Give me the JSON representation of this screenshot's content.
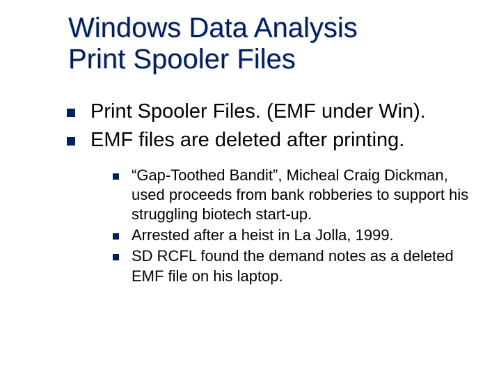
{
  "colors": {
    "background": "#ffffff",
    "title_text": "#001f5f",
    "body_text": "#000000",
    "bullet_marker": "#001f5f"
  },
  "typography": {
    "title_font": "Verdana",
    "title_size_pt": 30,
    "title_weight": 400,
    "body_font": "Verdana",
    "body_l1_size_pt": 22,
    "body_l2_size_pt": 17
  },
  "layout": {
    "slide_width": 720,
    "slide_height": 540,
    "title_left_pad": 98,
    "body_left_pad": 96,
    "sub_indent": 66,
    "bullet_l1_size": 12,
    "bullet_l2_size": 9
  },
  "title": {
    "line1": "Windows Data Analysis",
    "line2": "Print Spooler Files"
  },
  "bullets_l1": [
    "Print Spooler Files. (EMF under Win).",
    "EMF files are deleted after printing."
  ],
  "bullets_l2": [
    "“Gap-Toothed Bandit”, Micheal Craig Dickman, used proceeds from bank robberies to support his struggling biotech start-up.",
    "Arrested after a heist in La Jolla, 1999.",
    "SD RCFL found the demand notes as a deleted EMF file on his laptop."
  ]
}
